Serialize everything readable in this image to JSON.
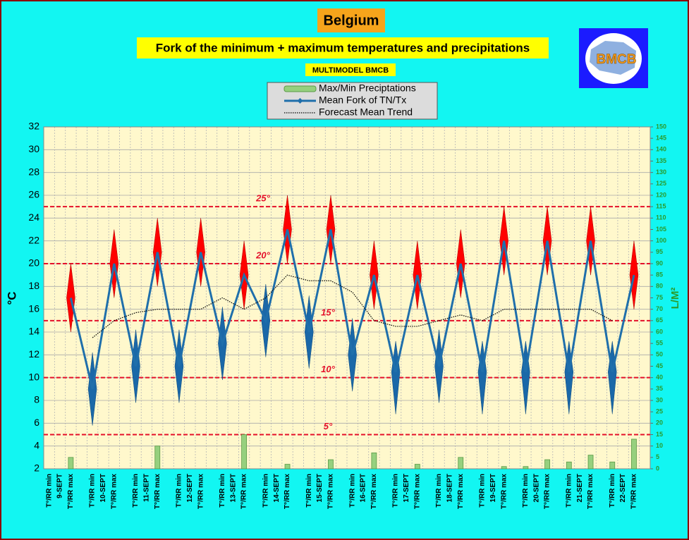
{
  "chart_data": {
    "type": "line",
    "title": "Belgium",
    "subtitle": "Fork of the minimum + maximum temperatures and precipitations",
    "model_label": "MULTIMODEL BMCB",
    "logo_text": "BMCB",
    "ylabel": "°C",
    "y2label": "L/M²",
    "categories": [
      "T°/RR min",
      "T°/RR max",
      "T°/RR min",
      "T°/RR max",
      "T°/RR min",
      "T°/RR max",
      "T°/RR min",
      "T°/RR max",
      "T°/RR min",
      "T°/RR max",
      "T°/RR min",
      "T°/RR max",
      "T°/RR min",
      "T°/RR max",
      "T°/RR min",
      "T°/RR max",
      "T°/RR min",
      "T°/RR max",
      "T°/RR min",
      "T°/RR max",
      "T°/RR min",
      "T°/RR max",
      "T°/RR min",
      "T°/RR max",
      "T°/RR min",
      "T°/RR max",
      "T°/RR min",
      "T°/RR max"
    ],
    "day_labels": [
      "9-SEPT",
      "10-SEPT",
      "11-SEPT",
      "12-SEPT",
      "13-SEPT",
      "14-SEPT",
      "15-SEPT",
      "16-SEPT",
      "17-SEPT",
      "18-SEPT",
      "19-SEPT",
      "20-SEPT",
      "21-SEPT",
      "22-SEPT"
    ],
    "ylim": [
      2,
      32
    ],
    "yticks": [
      2,
      4,
      6,
      8,
      10,
      12,
      14,
      16,
      18,
      20,
      22,
      24,
      26,
      28,
      30,
      32
    ],
    "y2lim": [
      0,
      150
    ],
    "y2ticks": [
      0,
      5,
      10,
      15,
      20,
      25,
      30,
      35,
      40,
      45,
      50,
      55,
      60,
      65,
      70,
      75,
      80,
      85,
      90,
      95,
      100,
      105,
      110,
      115,
      120,
      125,
      130,
      135,
      140,
      145,
      150
    ],
    "grid": true,
    "max_color": "#ff0000",
    "min_color": "#1a68a8",
    "reference_color": "#e4102a",
    "reference_lines": [
      {
        "value": 25,
        "label": "25°"
      },
      {
        "value": 20,
        "label": "20°"
      },
      {
        "value": 15,
        "label": "15°"
      },
      {
        "value": 10,
        "label": "10°"
      },
      {
        "value": 5,
        "label": "5°"
      }
    ],
    "series": [
      {
        "name": "Max/Min Preciptations",
        "type": "bar",
        "axis": "y2",
        "color": "#96d07e",
        "values": [
          null,
          5,
          null,
          null,
          null,
          10,
          null,
          null,
          null,
          15,
          null,
          2,
          null,
          4,
          null,
          7,
          null,
          2,
          null,
          5,
          null,
          1,
          1,
          4,
          3,
          6,
          3,
          13
        ]
      },
      {
        "name": "Mean Fork of TN/Tx",
        "type": "line",
        "color": "#1f6fab",
        "values": [
          null,
          17,
          9,
          20,
          11,
          21,
          11,
          21,
          13,
          19,
          15,
          23,
          14,
          23,
          12,
          19,
          10.5,
          19,
          11,
          20,
          10.5,
          22,
          10.5,
          22,
          10.5,
          22,
          10.5,
          19
        ],
        "fork_low": [
          null,
          14,
          5.8,
          17,
          7.8,
          18,
          7.8,
          18,
          9.8,
          16,
          11.8,
          20,
          10.8,
          20,
          8.8,
          16,
          6.8,
          16,
          7.8,
          17,
          6.8,
          19,
          6.8,
          19,
          6.8,
          19,
          6.8,
          16
        ],
        "fork_high": [
          null,
          20,
          12.2,
          23,
          14.2,
          24,
          14.2,
          24,
          16.2,
          22,
          18.2,
          26,
          17.2,
          26,
          15.2,
          22,
          13.2,
          22,
          14.2,
          23,
          13.2,
          25,
          13.2,
          25,
          13.2,
          25,
          13.2,
          22
        ]
      },
      {
        "name": "Forecast Mean Trend",
        "type": "trend",
        "color": "#000000",
        "values": [
          null,
          null,
          13.5,
          15,
          15.7,
          16,
          16,
          16,
          17,
          16,
          17,
          19,
          18.5,
          18.5,
          17.5,
          15,
          14.5,
          14.5,
          15,
          15.5,
          15,
          16,
          16,
          16,
          16,
          16,
          15,
          null
        ]
      }
    ]
  }
}
